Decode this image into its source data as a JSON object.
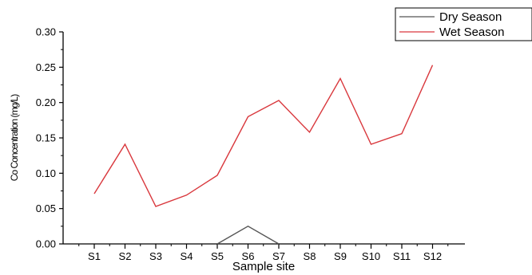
{
  "chart_data": {
    "type": "line",
    "title": "",
    "xlabel": "Sample site",
    "ylabel": "Co Concentration (mg/L)",
    "categories": [
      "S1",
      "S2",
      "S3",
      "S4",
      "S5",
      "S6",
      "S7",
      "S8",
      "S9",
      "S10",
      "S11",
      "S12"
    ],
    "ylim": [
      0,
      0.3
    ],
    "yticks": [
      "0.00",
      "0.05",
      "0.10",
      "0.15",
      "0.20",
      "0.25",
      "0.30"
    ],
    "grid": false,
    "legend_position": "top-right",
    "series": [
      {
        "name": "Dry Season",
        "color": "#555555",
        "values": [
          null,
          null,
          null,
          null,
          0.0,
          0.025,
          0.0,
          null,
          null,
          null,
          null,
          null
        ]
      },
      {
        "name": "Wet Season",
        "color": "#d9383d",
        "values": [
          0.071,
          0.141,
          0.053,
          0.069,
          0.097,
          0.18,
          0.203,
          0.158,
          0.234,
          0.141,
          0.156,
          0.253
        ]
      }
    ]
  }
}
